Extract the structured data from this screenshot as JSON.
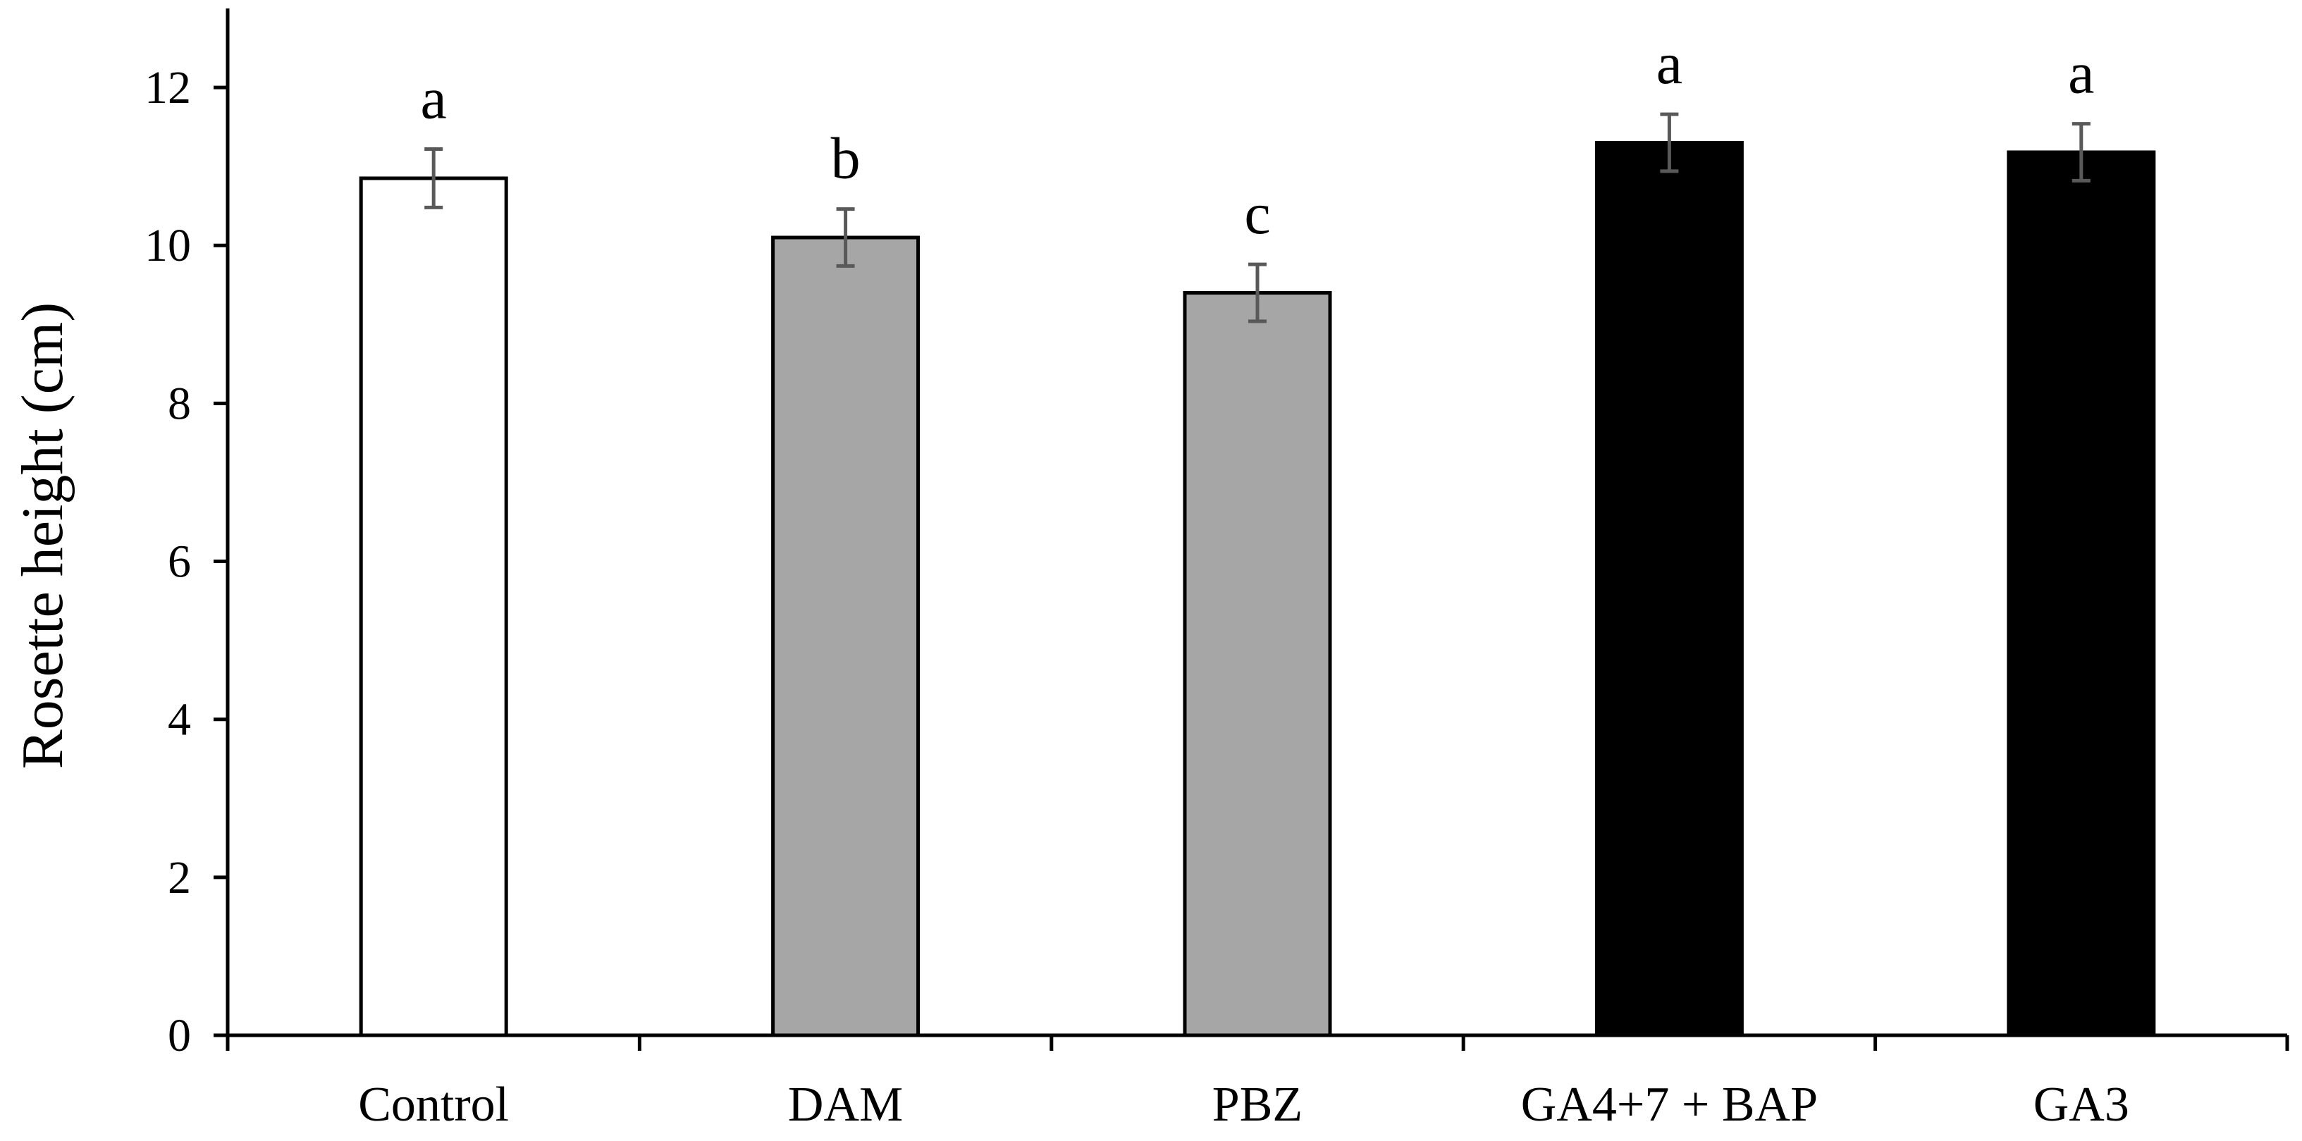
{
  "chart_data": {
    "type": "bar",
    "title": "",
    "xlabel": "",
    "ylabel": "Rosette height (cm)",
    "ylim": [
      0,
      13
    ],
    "yticks": [
      0,
      2,
      4,
      6,
      8,
      10,
      12
    ],
    "grid": false,
    "legend": "none",
    "categories": [
      "Control",
      "DAM",
      "PBZ",
      "GA4+7 + BAP",
      "GA3"
    ],
    "values": [
      10.85,
      10.1,
      9.4,
      11.3,
      11.18
    ],
    "errors": [
      0.37,
      0.36,
      0.36,
      0.36,
      0.36
    ],
    "significance_letters": [
      "a",
      "b",
      "c",
      "a",
      "a"
    ],
    "bar_colors": [
      "#ffffff",
      "#a6a6a6",
      "#a6a6a6",
      "#000000",
      "#000000"
    ],
    "error_bar_color": "#595959",
    "axis_color": "#000000"
  }
}
